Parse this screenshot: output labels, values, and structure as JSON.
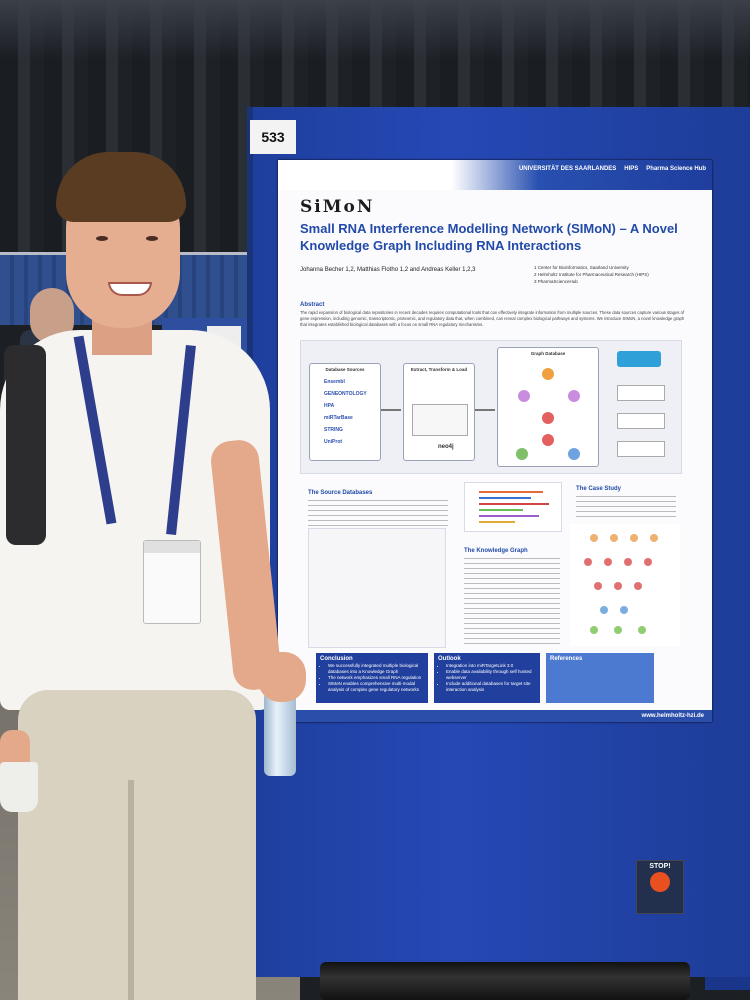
{
  "scene": {
    "board_number": "533",
    "stop_sticker": "STOP!"
  },
  "poster": {
    "logo": "SiMoN",
    "title": "Small RNA Interference Modelling Network (SIMoN) – A Novel Knowledge Graph Including RNA Interactions",
    "authors": "Johanna Becher 1,2, Matthias Flotho 1,2 and Andreas Keller 1,2,3",
    "affiliations": [
      "1 Center for Bioinformatics, Saarland University",
      "2 Helmholtz Institute for Pharmaceutical Research (HIPS)",
      "3 PharmaScienceHub"
    ],
    "header_logos": [
      "UNIVERSITÄT DES SAARLANDES",
      "HIPS",
      "Pharma Science Hub"
    ],
    "abstract_heading": "Abstract",
    "abstract": "The rapid expansion of biological data repositories in recent decades requires computational tools that can effectively integrate information from multiple sources. These data sources capture various stages of gene expression, including genomic, transcriptomic, proteomic, and regulatory data that, when combined, can reveal complex biological pathways and systems. We introduce SIMoN, a novel knowledge graph that integrates established biological databases with a focus on small RNA regulatory mechanisms.",
    "pipeline": {
      "sources_heading": "Database Sources",
      "sources": [
        "Ensembl",
        "GENEONTOLOGY",
        "HPA",
        "miRTarBase",
        "STRING",
        "UniProt"
      ],
      "etl_heading": "Extract, Transform & Load",
      "graph_heading": "Graph Database",
      "neo4j": "neo4j"
    },
    "sections": {
      "source_db": "The Source Databases",
      "knowledge_graph": "The Knowledge Graph",
      "case_study": "The Case Study"
    },
    "conclusion": {
      "heading": "Conclusion",
      "items": [
        "We successfully integrated multiple biological databases into a Knowledge Graph",
        "The network emphasizes small RNA regulation",
        "SIMoN enables comprehensive multi-modal analysis of complex gene regulatory networks"
      ]
    },
    "outlook": {
      "heading": "Outlook",
      "items": [
        "Integration into miRTargetLink 3.0",
        "Enable data availability through self hosted webserver",
        "Include additional databases for target site interaction analysis"
      ]
    },
    "references": {
      "heading": "References"
    },
    "footer_url": "www.helmholtz-hzi.de"
  }
}
